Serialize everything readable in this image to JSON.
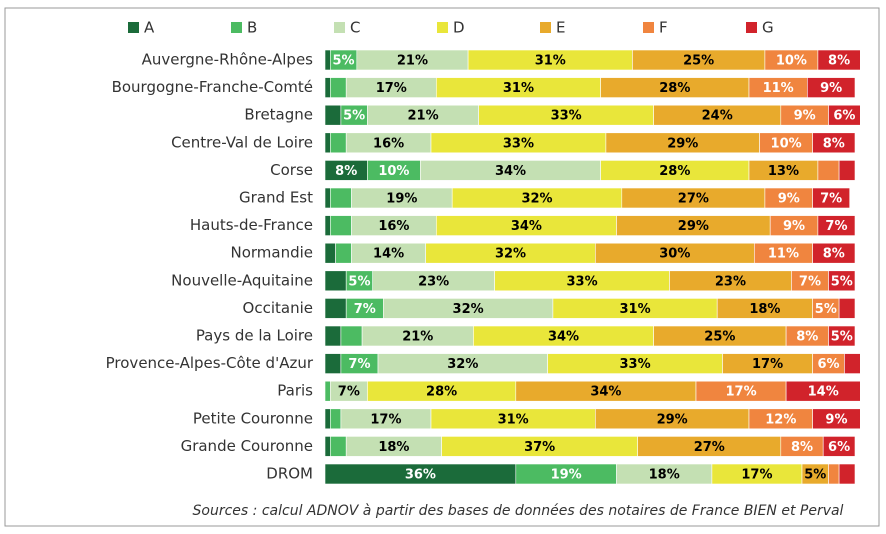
{
  "chart_data": {
    "type": "stacked-bar-horizontal",
    "categories": [
      "Auvergne-Rhône-Alpes",
      "Bourgogne-Franche-Comté",
      "Bretagne",
      "Centre-Val de Loire",
      "Corse",
      "Grand Est",
      "Hauts-de-France",
      "Normandie",
      "Nouvelle-Aquitaine",
      "Occitanie",
      "Pays de la Loire",
      "Provence-Alpes-Côte d'Azur",
      "Paris",
      "Petite Couronne",
      "Grande Couronne",
      "DROM"
    ],
    "xlim": [
      0,
      100
    ],
    "series": [
      {
        "name": "A",
        "color": "#1b6b3a",
        "label_color": "#ffffff",
        "values": [
          1,
          1,
          3,
          1,
          8,
          1,
          1,
          2,
          4,
          4,
          3,
          3,
          0,
          1,
          1,
          36
        ],
        "value_labels": [
          null,
          null,
          null,
          null,
          "8%",
          null,
          null,
          null,
          null,
          null,
          null,
          null,
          null,
          null,
          null,
          "36%"
        ]
      },
      {
        "name": "B",
        "color": "#4cbb62",
        "label_color": "#ffffff",
        "values": [
          5,
          3,
          5,
          3,
          10,
          4,
          4,
          3,
          5,
          7,
          4,
          7,
          1,
          2,
          3,
          19
        ],
        "value_labels": [
          "5%",
          null,
          "5%",
          null,
          "10%",
          null,
          null,
          null,
          "5%",
          "7%",
          null,
          "7%",
          null,
          null,
          null,
          "19%"
        ]
      },
      {
        "name": "C",
        "color": "#c4e0b3",
        "label_color": "#000000",
        "values": [
          21,
          17,
          21,
          16,
          34,
          19,
          16,
          14,
          23,
          32,
          21,
          32,
          7,
          17,
          18,
          18
        ],
        "value_labels": [
          "21%",
          "17%",
          "21%",
          "16%",
          "34%",
          "19%",
          "16%",
          "14%",
          "23%",
          "32%",
          "21%",
          "32%",
          "7%",
          "17%",
          "18%",
          "18%"
        ]
      },
      {
        "name": "D",
        "color": "#e9e63a",
        "label_color": "#000000",
        "values": [
          31,
          31,
          33,
          33,
          28,
          32,
          34,
          32,
          33,
          31,
          34,
          33,
          28,
          31,
          37,
          17
        ],
        "value_labels": [
          "31%",
          "31%",
          "33%",
          "33%",
          "28%",
          "32%",
          "34%",
          "32%",
          "33%",
          "31%",
          "34%",
          "33%",
          "28%",
          "31%",
          "37%",
          "17%"
        ]
      },
      {
        "name": "E",
        "color": "#e8aa2c",
        "label_color": "#000000",
        "values": [
          25,
          28,
          24,
          29,
          13,
          27,
          29,
          30,
          23,
          18,
          25,
          17,
          34,
          29,
          27,
          5
        ],
        "value_labels": [
          "25%",
          "28%",
          "24%",
          "29%",
          "13%",
          "27%",
          "29%",
          "30%",
          "23%",
          "18%",
          "25%",
          "17%",
          "34%",
          "29%",
          "27%",
          "5%"
        ]
      },
      {
        "name": "F",
        "color": "#f0853f",
        "label_color": "#ffffff",
        "values": [
          10,
          11,
          9,
          10,
          4,
          9,
          9,
          11,
          7,
          5,
          8,
          6,
          17,
          12,
          8,
          2
        ],
        "value_labels": [
          "10%",
          "11%",
          "9%",
          "10%",
          null,
          "9%",
          "9%",
          "11%",
          "7%",
          "5%",
          "8%",
          "6%",
          "17%",
          "12%",
          "8%",
          null
        ]
      },
      {
        "name": "G",
        "color": "#d1232b",
        "label_color": "#ffffff",
        "values": [
          8,
          9,
          6,
          8,
          3,
          7,
          7,
          8,
          5,
          3,
          5,
          3,
          14,
          9,
          6,
          3
        ],
        "value_labels": [
          "8%",
          "9%",
          "6%",
          "8%",
          null,
          "7%",
          "7%",
          "8%",
          "5%",
          null,
          "5%",
          null,
          "14%",
          "9%",
          "6%",
          null
        ]
      }
    ],
    "source": "Sources : calcul ADNOV à partir des bases de données des notaires de France BIEN et Perval"
  }
}
